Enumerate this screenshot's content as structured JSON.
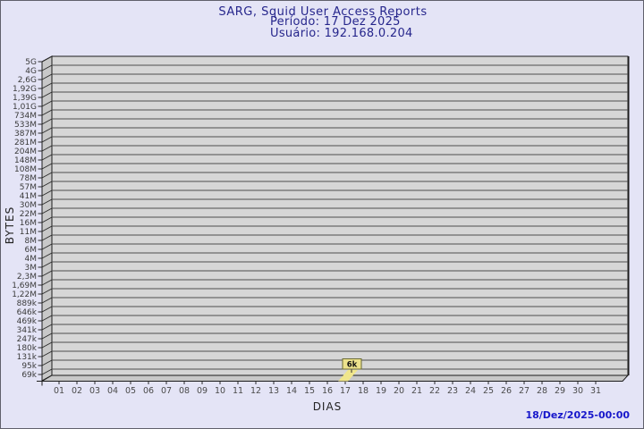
{
  "header": {
    "title": "SARG, Squid User Access Reports",
    "period": "Período: 17 Dez 2025",
    "user": "Usuário: 192.168.0.204"
  },
  "footer": {
    "generated": "18/Dez/2025-00:00"
  },
  "chart_data": {
    "type": "bar",
    "title": "SARG, Squid User Access Reports",
    "subtitle": "Período: 17 Dez 2025 — Usuário: 192.168.0.204",
    "xlabel": "DIAS",
    "ylabel": "BYTES",
    "scale": "log",
    "grid": true,
    "legend_position": "none",
    "style_3d": true,
    "categories": [
      "01",
      "02",
      "03",
      "04",
      "05",
      "06",
      "07",
      "08",
      "09",
      "10",
      "11",
      "12",
      "13",
      "14",
      "15",
      "16",
      "17",
      "18",
      "19",
      "20",
      "21",
      "22",
      "23",
      "24",
      "25",
      "26",
      "27",
      "28",
      "29",
      "30",
      "31"
    ],
    "series": [
      {
        "name": "bytes",
        "values": [
          0,
          0,
          0,
          0,
          0,
          0,
          0,
          0,
          0,
          0,
          0,
          0,
          0,
          0,
          0,
          0,
          6000,
          0,
          0,
          0,
          0,
          0,
          0,
          0,
          0,
          0,
          0,
          0,
          0,
          0,
          0
        ]
      }
    ],
    "y_tick_labels": [
      "5G",
      "4G",
      "2,6G",
      "1,92G",
      "1,39G",
      "1,01G",
      "734M",
      "533M",
      "387M",
      "281M",
      "204M",
      "148M",
      "108M",
      "78M",
      "57M",
      "41M",
      "30M",
      "22M",
      "16M",
      "11M",
      "8M",
      "6M",
      "4M",
      "3M",
      "2,3M",
      "1,69M",
      "1,22M",
      "889k",
      "646k",
      "469k",
      "341k",
      "247k",
      "180k",
      "131k",
      "95k",
      "69k"
    ],
    "ylim_labels": [
      "69k",
      "5G"
    ],
    "annotations": [
      {
        "category": "17",
        "label": "6k",
        "value_bytes": 6000
      }
    ],
    "colors": {
      "background": "#e4e4f6",
      "plot_fill": "#d6d6d6",
      "wall_fill": "#c8c8c8",
      "gridline": "#4e4e4e",
      "axis": "#1c1c1c",
      "bar": "#f0e68c",
      "flag_fill": "#ece28c",
      "flag_border": "#6b6b33",
      "title": "#26268c",
      "timestamp": "#1717cb",
      "tick_label": "#3a3a3a"
    }
  }
}
